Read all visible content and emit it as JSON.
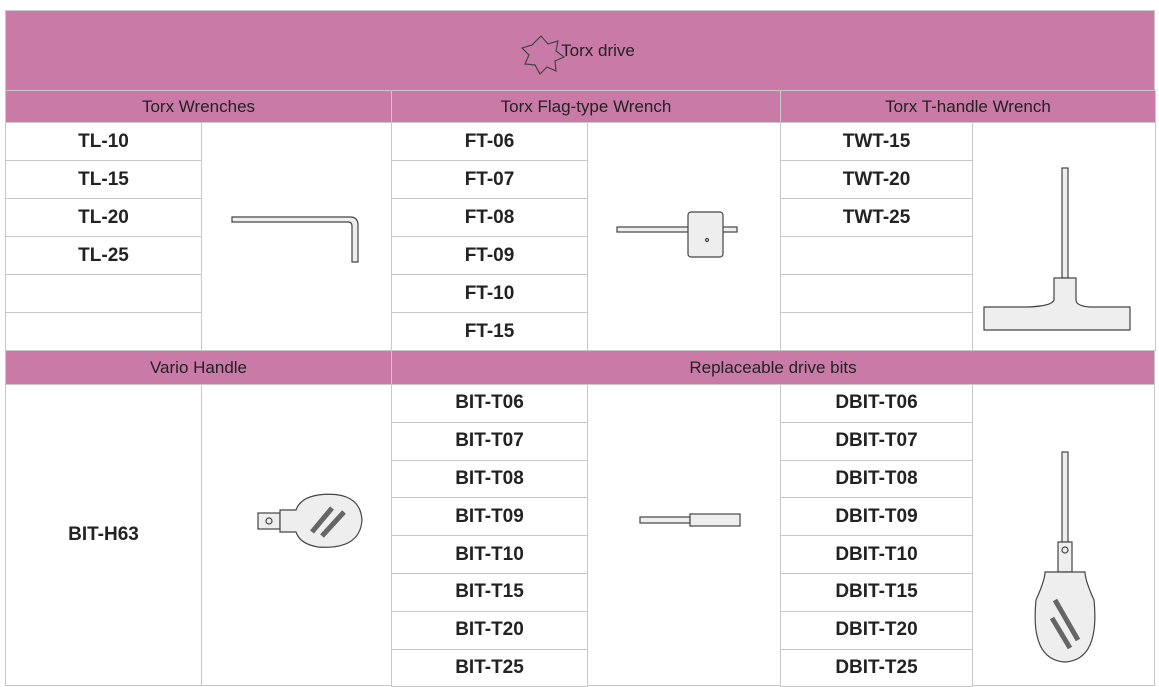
{
  "header": {
    "title": "Torx drive"
  },
  "top_sections": [
    {
      "title": "Torx Wrenches",
      "codes": [
        "TL-10",
        "TL-15",
        "TL-20",
        "TL-25"
      ]
    },
    {
      "title": "Torx Flag-type Wrench",
      "codes": [
        "FT-06",
        "FT-07",
        "FT-08",
        "FT-09",
        "FT-10",
        "FT-15"
      ]
    },
    {
      "title": "Torx T-handle Wrench",
      "codes": [
        "TWT-15",
        "TWT-20",
        "TWT-25"
      ]
    }
  ],
  "bottom_sections": [
    {
      "title": "Vario Handle",
      "codes": [
        "BIT-H63"
      ]
    },
    {
      "title": "Replaceable drive bits",
      "codes": [
        "BIT-T06",
        "BIT-T07",
        "BIT-T08",
        "BIT-T09",
        "BIT-T10",
        "BIT-T15",
        "BIT-T20",
        "BIT-T25"
      ],
      "codes_2": [
        "DBIT-T06",
        "DBIT-T07",
        "DBIT-T08",
        "DBIT-T09",
        "DBIT-T10",
        "DBIT-T15",
        "DBIT-T20",
        "DBIT-T25"
      ]
    }
  ]
}
